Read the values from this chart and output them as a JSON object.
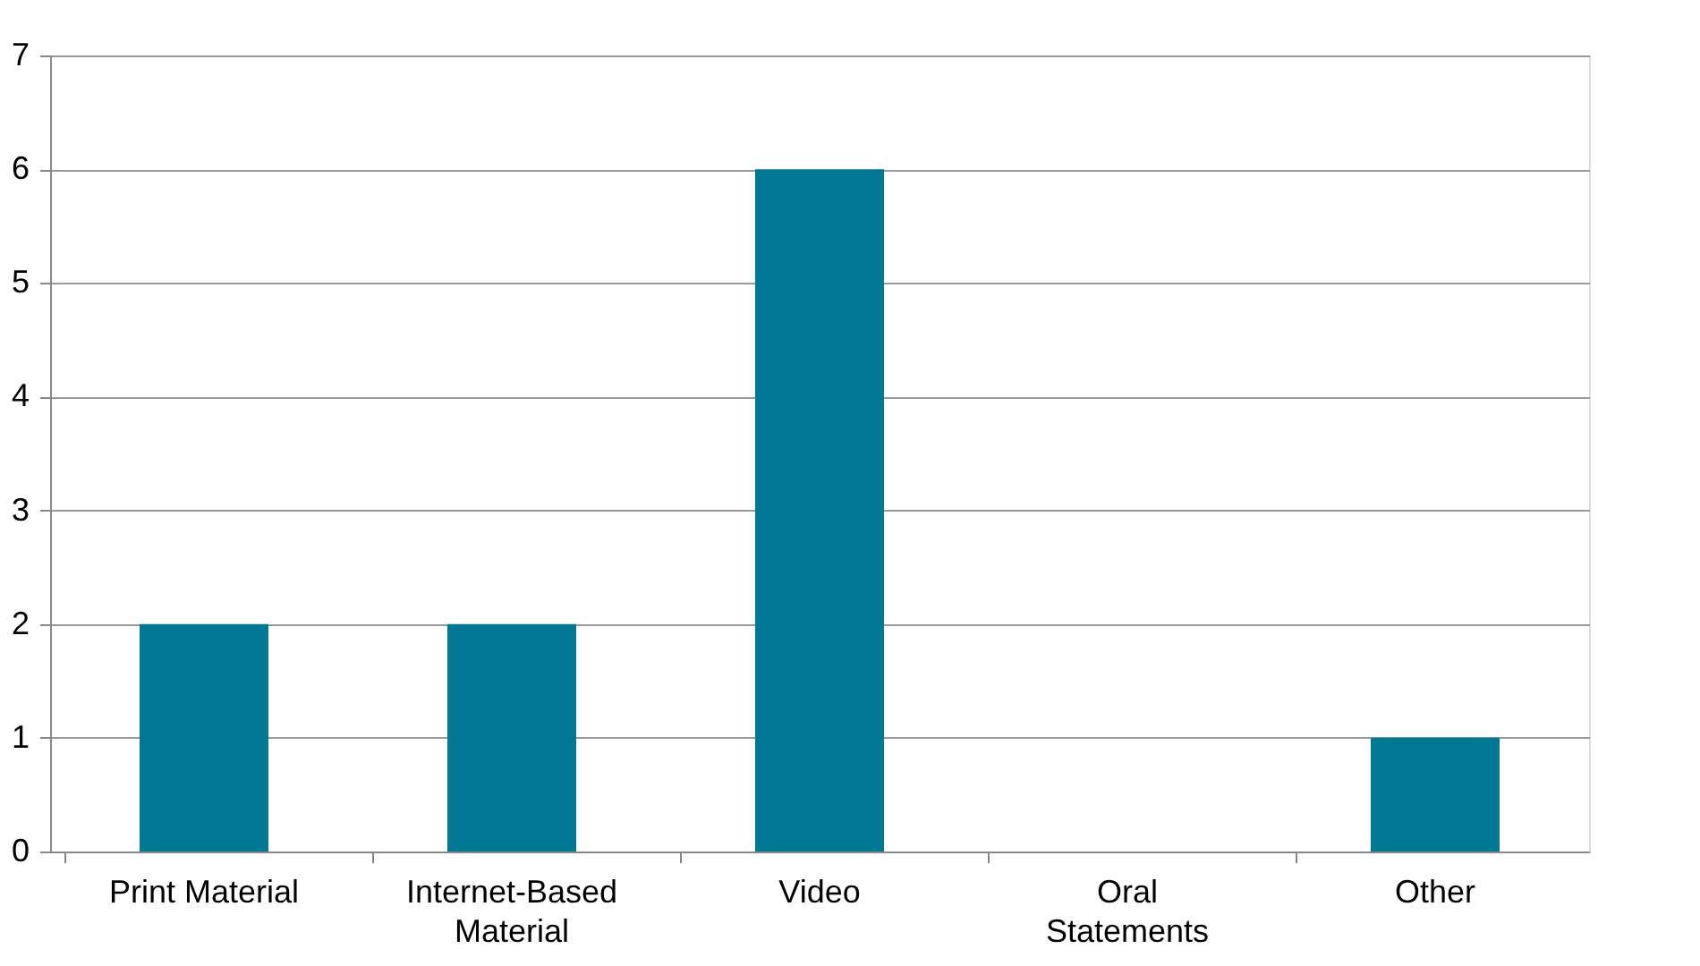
{
  "chart_data": {
    "type": "bar",
    "categories": [
      "Print Material",
      "Internet-Based Material",
      "Video",
      "Oral Statements",
      "Other"
    ],
    "values": [
      2,
      2,
      6,
      0,
      1
    ],
    "color": "#007893",
    "ylim": [
      0,
      7
    ],
    "yticks": [
      0,
      1,
      2,
      3,
      4,
      5,
      6,
      7
    ],
    "grid": "y"
  }
}
